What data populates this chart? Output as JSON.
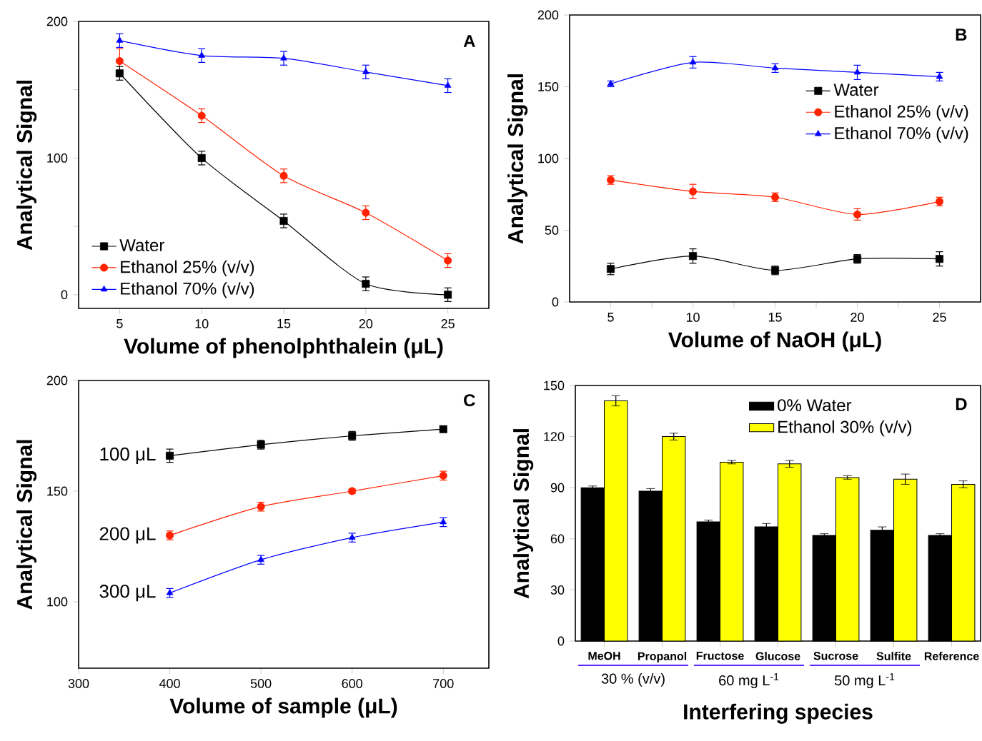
{
  "chart_data": [
    {
      "type": "line",
      "xlabel": "Volume of phenolphthalein (μL)",
      "ylabel": "Analytical Signal",
      "annotations": [
        "A"
      ],
      "x": [
        5,
        10,
        15,
        20,
        25
      ],
      "xlim": [
        2.5,
        27.5
      ],
      "xticks": [
        5,
        10,
        15,
        20,
        25
      ],
      "ylim": [
        -10,
        200
      ],
      "yticks": [
        0,
        {
          "value": 50,
          "label": null
        },
        100,
        {
          "value": 150,
          "label": null
        },
        200
      ],
      "legend": "bottom left",
      "series": [
        {
          "name": "Water",
          "color": "#000000",
          "marker": "square",
          "values": [
            162,
            100,
            54,
            8,
            0
          ],
          "errors": [
            5,
            5,
            5,
            5,
            5
          ]
        },
        {
          "name": "Ethanol 25% (v/v)",
          "color": "#ff2200",
          "marker": "circle",
          "values": [
            171,
            131,
            87,
            60,
            25
          ],
          "errors": [
            9,
            5,
            5,
            5,
            5
          ]
        },
        {
          "name": "Ethanol 70% (v/v)",
          "color": "#0000ff",
          "marker": "triangle",
          "values": [
            186,
            175,
            173,
            163,
            153
          ],
          "errors": [
            5,
            5,
            5,
            5,
            5
          ]
        }
      ]
    },
    {
      "type": "line",
      "xlabel": "Volume of NaOH (μL)",
      "ylabel": "Analytical Signal",
      "annotations": [
        "B"
      ],
      "x": [
        5,
        10,
        15,
        20,
        25
      ],
      "xlim": [
        2.5,
        27.5
      ],
      "xticks": [
        5,
        {
          "value": 7.5,
          "label": null
        },
        10,
        {
          "value": 12.5,
          "label": null
        },
        15,
        {
          "value": 17.5,
          "label": null
        },
        20,
        {
          "value": 22.5,
          "label": null
        },
        25
      ],
      "ylim": [
        0,
        200
      ],
      "yticks": [
        0,
        50,
        100,
        150,
        200
      ],
      "legend": "right",
      "series": [
        {
          "name": "Water",
          "color": "#000000",
          "marker": "square",
          "values": [
            23,
            32,
            22,
            30,
            30
          ],
          "errors": [
            4,
            5,
            3,
            3,
            5
          ]
        },
        {
          "name": "Ethanol 25% (v/v)",
          "color": "#ff2200",
          "marker": "circle",
          "values": [
            85,
            77,
            73,
            61,
            70
          ],
          "errors": [
            3,
            5,
            3,
            4,
            3
          ]
        },
        {
          "name": "Ethanol 70% (v/v)",
          "color": "#0000ff",
          "marker": "triangle",
          "values": [
            152,
            167,
            163,
            160,
            157
          ],
          "errors": [
            2,
            4,
            3,
            5,
            3
          ]
        }
      ]
    },
    {
      "type": "line",
      "xlabel": "Volume of sample (μL)",
      "ylabel": "Analytical Signal",
      "annotations": [
        "C"
      ],
      "x": [
        400,
        500,
        600,
        700
      ],
      "xlim": [
        300,
        750
      ],
      "xticks": [
        300,
        400,
        500,
        600,
        700
      ],
      "ylim": [
        70,
        200
      ],
      "yticks": [
        100,
        150,
        200
      ],
      "series": [
        {
          "name": "100 μL",
          "color": "#000000",
          "marker": "square",
          "values": [
            166,
            171,
            175,
            178
          ],
          "errors": [
            3,
            2,
            2,
            1
          ]
        },
        {
          "name": "200 μL",
          "color": "#ff2200",
          "marker": "circle",
          "values": [
            130,
            143,
            150,
            157
          ],
          "errors": [
            2,
            2,
            1,
            2
          ]
        },
        {
          "name": "300 μL",
          "color": "#0000ff",
          "marker": "triangle",
          "values": [
            104,
            119,
            129,
            136
          ],
          "errors": [
            2,
            2,
            2,
            2
          ]
        }
      ]
    },
    {
      "type": "bar",
      "xlabel": "Interfering species",
      "ylabel": "Analytical Signal",
      "annotations": [
        "D",
        "30 % (v/v)",
        "60 mg L$^{-1}$",
        "50 mg L$^{-1}$"
      ],
      "categories": [
        "MeOH",
        "Propanol",
        "Fructose",
        "Glucose",
        "Sucrose",
        "Sulfite",
        "Reference"
      ],
      "ylim": [
        0,
        150
      ],
      "yticks": [
        0,
        30,
        60,
        90,
        120,
        150
      ],
      "legend": "top right",
      "series": [
        {
          "name": "0% Water",
          "color": "#000000",
          "values": [
            90,
            88,
            70,
            67,
            62,
            65,
            62
          ],
          "errors": [
            1,
            1.5,
            1,
            2,
            1,
            2,
            1
          ]
        },
        {
          "name": "Ethanol 30% (v/v)",
          "color": "#ffff00",
          "values": [
            141,
            120,
            105,
            104,
            96,
            95,
            92
          ],
          "errors": [
            3,
            2,
            1,
            2,
            1,
            3,
            2
          ]
        }
      ]
    }
  ]
}
